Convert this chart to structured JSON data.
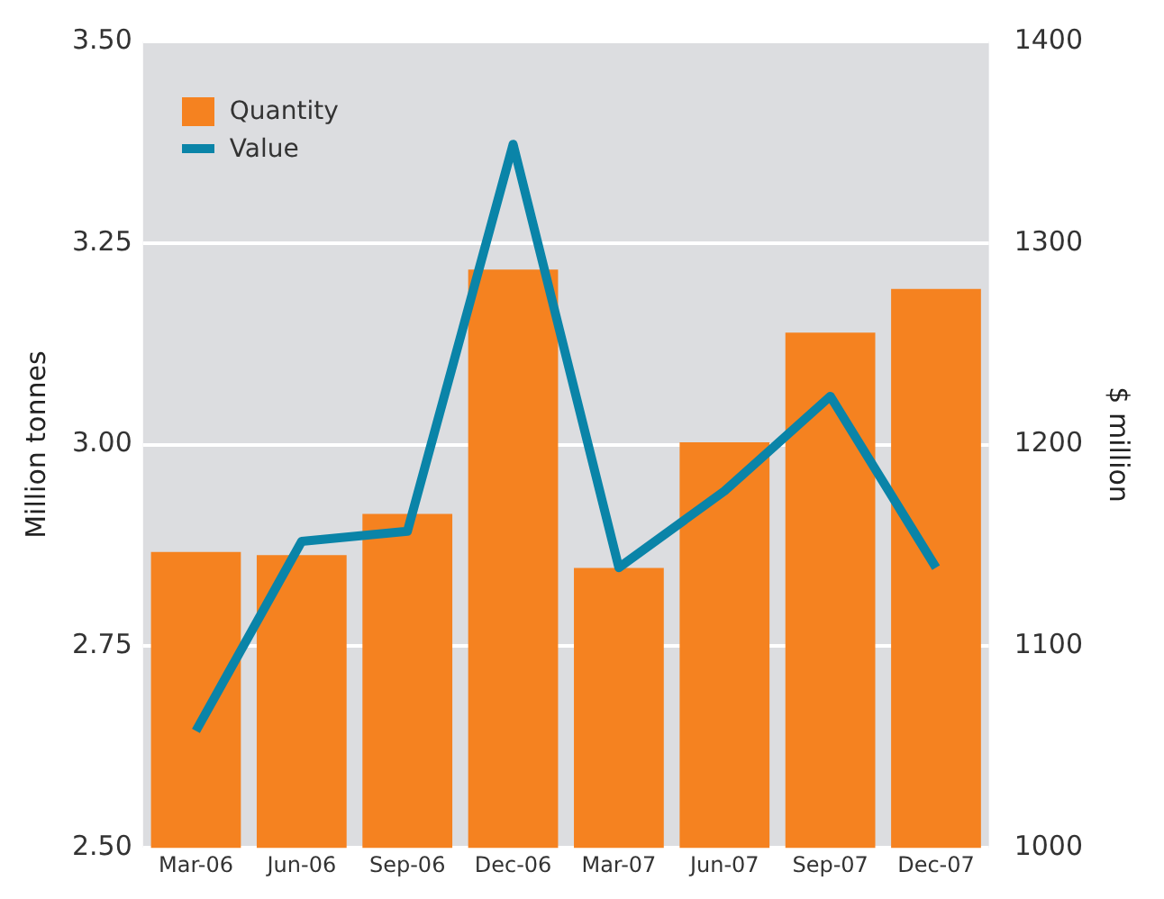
{
  "chart_data": {
    "type": "bar",
    "categories": [
      "Mar-06",
      "Jun-06",
      "Sep-06",
      "Dec-06",
      "Mar-07",
      "Jun-07",
      "Sep-07",
      "Dec-07"
    ],
    "series": [
      {
        "name": "Quantity",
        "color": "#f58220",
        "values": [
          2.867,
          2.863,
          2.914,
          3.217,
          2.847,
          3.003,
          3.139,
          3.193
        ]
      },
      {
        "name": "Value",
        "type": "line",
        "axis": "y2",
        "color": "#0a84a8",
        "values": [
          1058,
          1152,
          1157,
          1349,
          1139,
          1177,
          1224,
          1139
        ]
      }
    ],
    "ylabel": "Million tonnes",
    "y2label": "$ million",
    "ylim": [
      2.5,
      3.5
    ],
    "yticks": [
      {
        "value": 2.5,
        "label": "2.50"
      },
      {
        "value": 2.75,
        "label": "2.75"
      },
      {
        "value": 3.0,
        "label": "3.00"
      },
      {
        "value": 3.25,
        "label": "3.25"
      },
      {
        "value": 3.5,
        "label": "3.50"
      }
    ],
    "y2lim": [
      1000,
      1400
    ],
    "y2ticks": [
      1000,
      1100,
      1200,
      1300,
      1400
    ],
    "grid": "y",
    "legend": "top left",
    "marker": "none",
    "line_style": "solid"
  }
}
